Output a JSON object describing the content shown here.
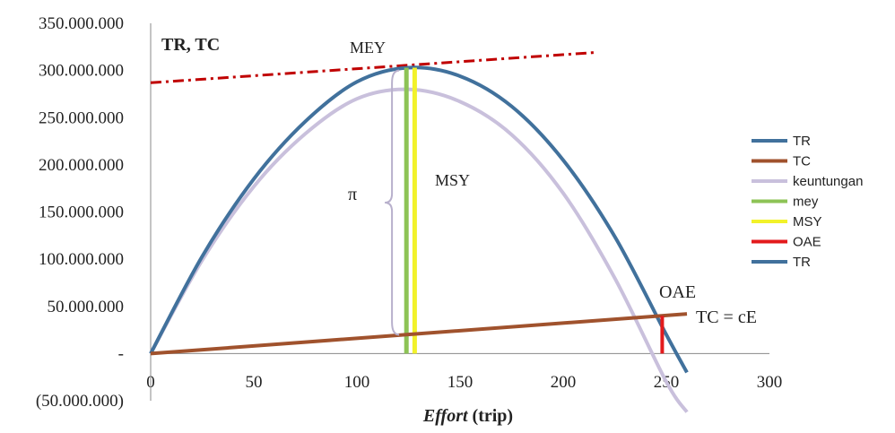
{
  "chart_data": {
    "type": "line",
    "ylabel": "TR, TC",
    "xlabel_italic": "Effort",
    "xlabel_rest": " (trip)",
    "xlim": [
      0,
      300
    ],
    "ylim": [
      -50000000,
      350000000
    ],
    "x_ticks": [
      0,
      50,
      100,
      150,
      200,
      250,
      300
    ],
    "x_tick_labels": [
      "0",
      "50",
      "100",
      "150",
      "200",
      "250",
      "300"
    ],
    "y_ticks": [
      -50000000,
      0,
      50000000,
      100000000,
      150000000,
      200000000,
      250000000,
      300000000,
      350000000
    ],
    "y_tick_labels": [
      "(50.000.000)",
      "-",
      "50.000.000",
      "100.000.000",
      "150.000.000",
      "200.000.000",
      "250.000.000",
      "300.000.000",
      "350.000.000"
    ],
    "series": [
      {
        "name": "TR",
        "color": "#41719c",
        "x": [
          0,
          25,
          50,
          75,
          100,
          125,
          150,
          175,
          200,
          225,
          250,
          260
        ],
        "y": [
          0,
          103000000,
          185000000,
          246000000,
          288000000,
          303000000,
          294000000,
          262000000,
          205000000,
          124000000,
          20000000,
          -20000000
        ]
      },
      {
        "name": "TC",
        "color": "#a0522d",
        "x": [
          0,
          260
        ],
        "y": [
          0,
          42000000
        ]
      },
      {
        "name": "keuntungan",
        "color": "#c9c0dc",
        "x": [
          0,
          25,
          50,
          75,
          100,
          125,
          150,
          175,
          200,
          225,
          250,
          260
        ],
        "y": [
          0,
          99000000,
          177000000,
          233000000,
          270000000,
          280000000,
          267000000,
          232000000,
          170000000,
          80000000,
          -30000000,
          -62000000
        ]
      },
      {
        "name": "mey",
        "color": "#8dc356",
        "x": [
          124,
          124
        ],
        "y": [
          0,
          303000000
        ]
      },
      {
        "name": "MSY",
        "color": "#f2f22a",
        "x": [
          128,
          128
        ],
        "y": [
          0,
          303000000
        ]
      },
      {
        "name": "OAE",
        "color": "#e31a1c",
        "x": [
          248,
          248
        ],
        "y": [
          0,
          40000000
        ]
      },
      {
        "name": "TR",
        "color": "#41719c",
        "x": [],
        "y": []
      }
    ],
    "tangent": {
      "color": "#c00000",
      "x": [
        0,
        215
      ],
      "y": [
        287000000,
        319000000
      ]
    },
    "brace": {
      "x": 117,
      "y": [
        20000000,
        300000000
      ]
    },
    "annotations": {
      "mey_label": "MEY",
      "msy_label": "MSY",
      "pi": "π",
      "oae": "OAE",
      "tc_eq": "TC = cE"
    },
    "legend_position": "right",
    "grid": false
  }
}
